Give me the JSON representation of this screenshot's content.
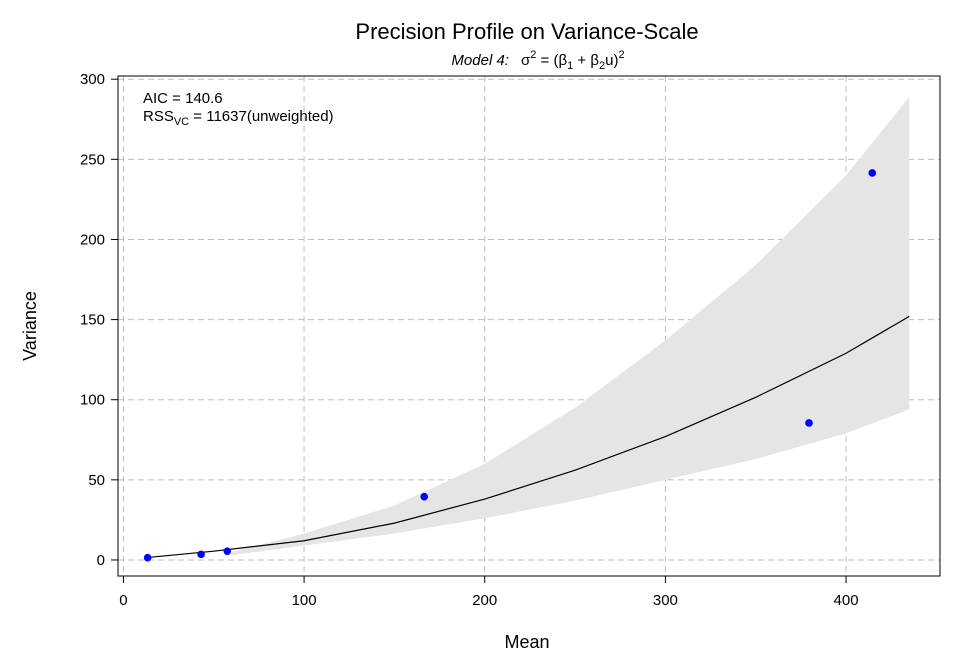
{
  "chart_data": {
    "type": "scatter",
    "title": "Precision Profile on Variance-Scale",
    "subtitle": {
      "model_label": "Model 4:",
      "formula_lhs": "σ",
      "lhs_exp": "2",
      "equals": " = ",
      "open_paren": "(",
      "beta": "β",
      "beta1_sub": "1",
      "plus": " + ",
      "beta2_sub": "2",
      "u": "u",
      "close_paren": ")",
      "rhs_exp": "2"
    },
    "xlabel": "Mean",
    "ylabel": "Variance",
    "xlim": [
      -3,
      452
    ],
    "ylim": [
      -10,
      302
    ],
    "x_ticks": [
      0,
      100,
      200,
      300,
      400
    ],
    "y_ticks": [
      0,
      50,
      100,
      150,
      200,
      250,
      300
    ],
    "grid": true,
    "annotation": {
      "aic_label": "AIC = 140.6",
      "rss_prefix": "RSS",
      "rss_sub": "VC",
      "rss_value": " = 11637(unweighted)"
    },
    "series": [
      {
        "type": "scatter",
        "color": "#0000ff",
        "x": [
          13.4,
          43,
          57.5,
          166.5,
          379.5,
          414.5
        ],
        "y": [
          1.4,
          3.5,
          5.5,
          39.5,
          85.5,
          241.5
        ]
      },
      {
        "type": "line",
        "color": "#000000",
        "x": [
          13,
          50,
          100,
          150,
          200,
          250,
          300,
          350,
          400,
          435
        ],
        "y": [
          1.5,
          5.5,
          12,
          23,
          38,
          56,
          77,
          101.5,
          129,
          152
        ]
      },
      {
        "type": "area",
        "color": "#e5e5e5",
        "x": [
          60,
          100,
          150,
          200,
          250,
          300,
          350,
          400,
          435
        ],
        "upper": [
          5,
          16.5,
          34,
          60,
          95,
          137,
          184,
          240,
          289
        ],
        "lower": [
          3,
          9,
          16.5,
          26,
          37,
          50,
          63,
          79,
          94
        ]
      }
    ]
  }
}
